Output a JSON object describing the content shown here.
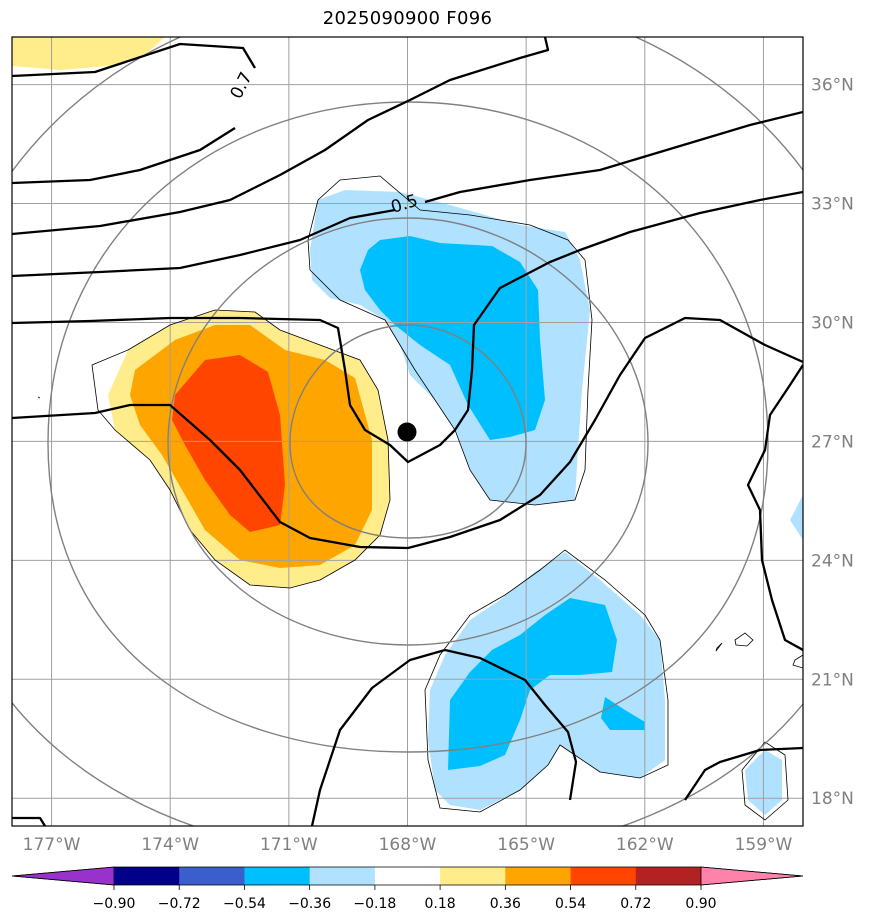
{
  "chart_data": {
    "type": "heatmap",
    "title": "2025090900 F096",
    "projection": "map",
    "xlim": [
      -178,
      -158
    ],
    "ylim": [
      17.3,
      37.2
    ],
    "grid": true,
    "x_ticks": [
      {
        "value": -177,
        "label": "177°W"
      },
      {
        "value": -174,
        "label": "174°W"
      },
      {
        "value": -171,
        "label": "171°W"
      },
      {
        "value": -168,
        "label": "168°W"
      },
      {
        "value": -165,
        "label": "165°W"
      },
      {
        "value": -162,
        "label": "162°W"
      },
      {
        "value": -159,
        "label": "159°W"
      }
    ],
    "y_ticks": [
      {
        "value": 36,
        "label": "36°N"
      },
      {
        "value": 33,
        "label": "33°N"
      },
      {
        "value": 30,
        "label": "30°N"
      },
      {
        "value": 27,
        "label": "27°N"
      },
      {
        "value": 24,
        "label": "24°N"
      },
      {
        "value": 21,
        "label": "21°N"
      },
      {
        "value": 18,
        "label": "18°N"
      }
    ],
    "center_marker": {
      "lon": -168.0,
      "lat": 27.3
    },
    "contour_labels": [
      {
        "text": "0.7",
        "lon": -171.3,
        "lat": 36.2
      },
      {
        "text": "0.5",
        "lon": -168.0,
        "lat": 33.1
      }
    ],
    "colorbar": {
      "levels": [
        -0.9,
        -0.72,
        -0.54,
        -0.36,
        -0.18,
        0.18,
        0.36,
        0.54,
        0.72,
        0.9
      ],
      "labels": [
        "−0.90",
        "−0.72",
        "−0.54",
        "−0.36",
        "−0.18",
        "0.18",
        "0.36",
        "0.54",
        "0.72",
        "0.90"
      ],
      "colors": [
        "#9932cc",
        "#00008b",
        "#3a5fcd",
        "#00bfff",
        "#b0e2ff",
        "#ffffff",
        "#ffec8b",
        "#ffa500",
        "#ff4500",
        "#b22222",
        "#ff82ab"
      ],
      "extend": "both"
    }
  }
}
